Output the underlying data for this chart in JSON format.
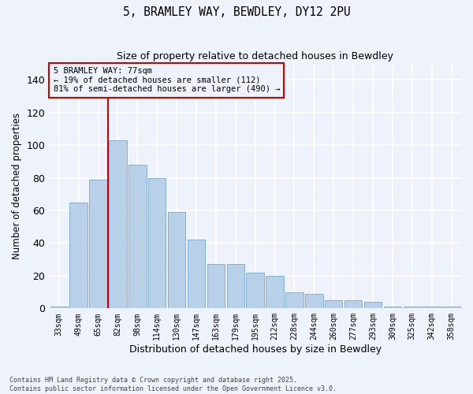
{
  "title": "5, BRAMLEY WAY, BEWDLEY, DY12 2PU",
  "subtitle": "Size of property relative to detached houses in Bewdley",
  "xlabel": "Distribution of detached houses by size in Bewdley",
  "ylabel": "Number of detached properties",
  "categories": [
    "33sqm",
    "49sqm",
    "65sqm",
    "82sqm",
    "98sqm",
    "114sqm",
    "130sqm",
    "147sqm",
    "163sqm",
    "179sqm",
    "195sqm",
    "212sqm",
    "228sqm",
    "244sqm",
    "260sqm",
    "277sqm",
    "293sqm",
    "309sqm",
    "325sqm",
    "342sqm",
    "358sqm"
  ],
  "values": [
    1,
    65,
    79,
    103,
    88,
    80,
    59,
    42,
    27,
    27,
    22,
    20,
    10,
    9,
    5,
    5,
    4,
    1,
    1,
    1,
    1
  ],
  "bar_color": "#b8d0e8",
  "bar_edge_color": "#7aa8cc",
  "background_color": "#eef2fa",
  "grid_color": "#ffffff",
  "ylim": [
    0,
    150
  ],
  "yticks": [
    0,
    20,
    40,
    60,
    80,
    100,
    120,
    140
  ],
  "vline_index": 2.5,
  "vline_color": "#cc0000",
  "annotation_text": "5 BRAMLEY WAY: 77sqm\n← 19% of detached houses are smaller (112)\n81% of semi-detached houses are larger (490) →",
  "annotation_box_color": "#cc0000",
  "footnote1": "Contains HM Land Registry data © Crown copyright and database right 2025.",
  "footnote2": "Contains public sector information licensed under the Open Government Licence v3.0."
}
